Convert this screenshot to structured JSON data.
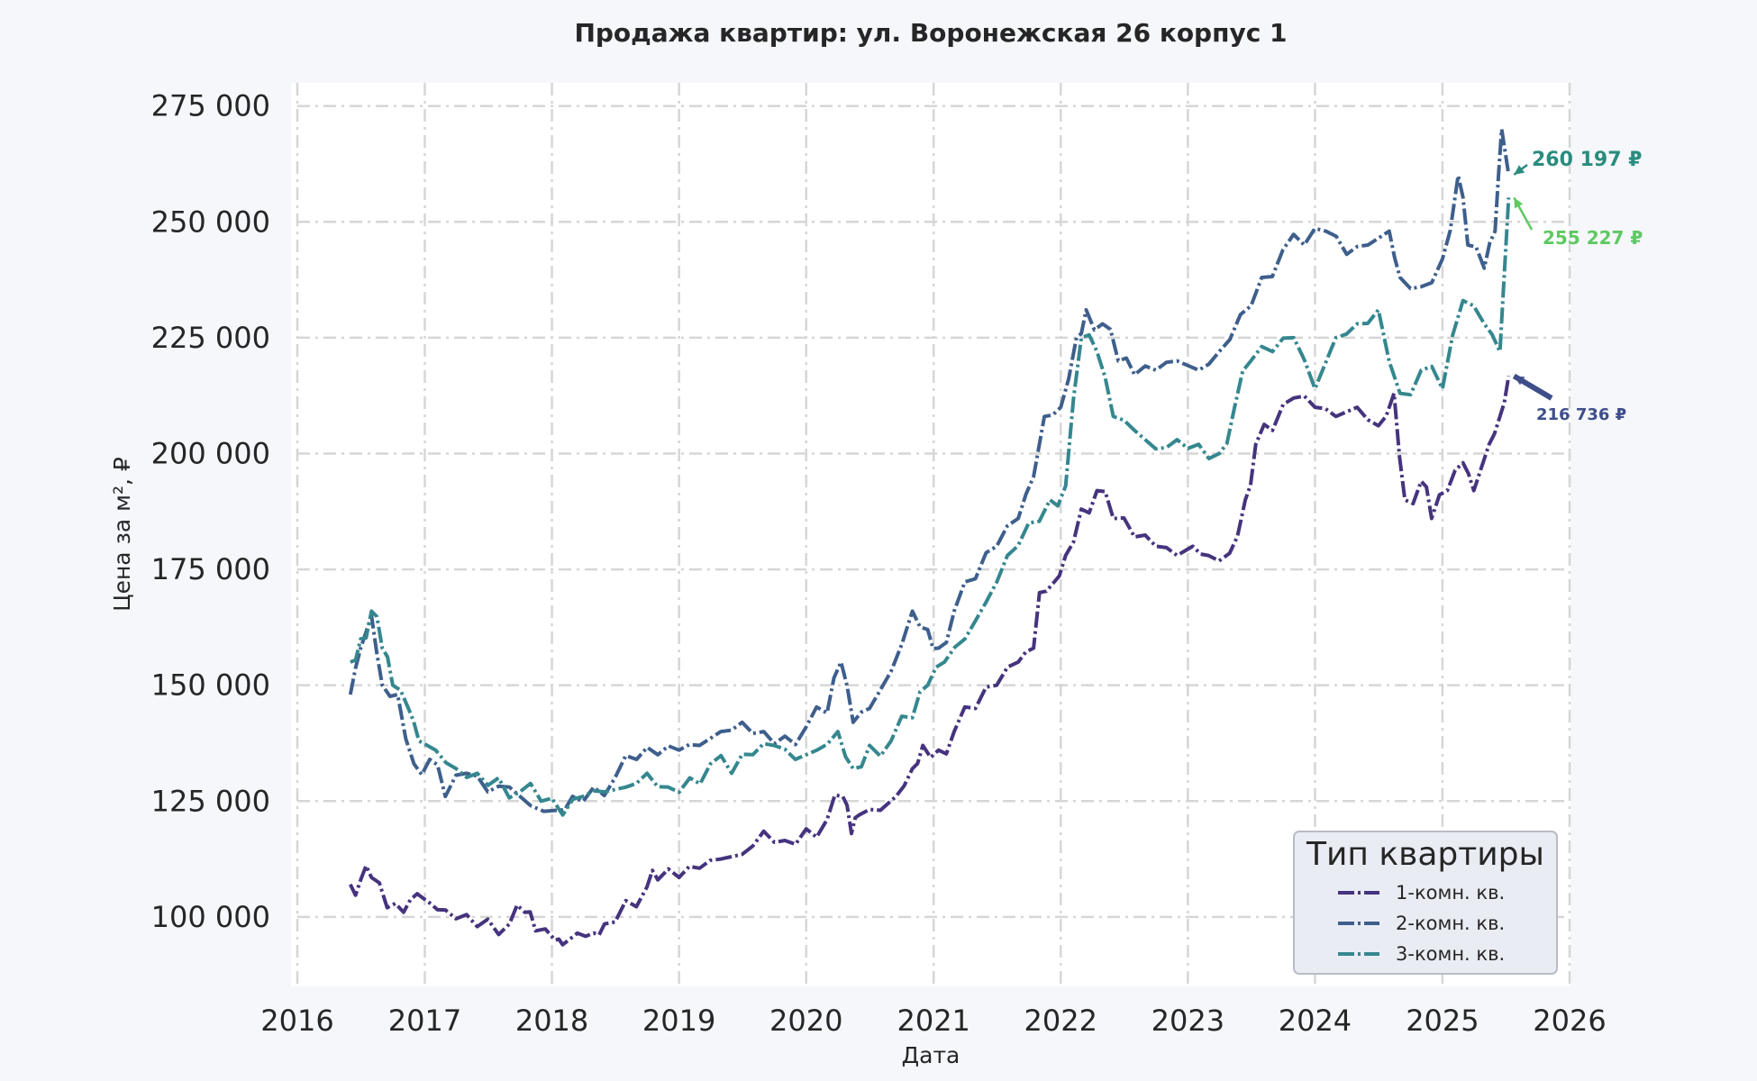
{
  "chart_data": {
    "type": "line",
    "title": "Продажа квартир: ул. Воронежская 26 корпус 1",
    "xlabel": "Дата",
    "ylabel": "Цена за м², ₽",
    "xlim": [
      "2016-01-01",
      "2026-01-01"
    ],
    "ylim": [
      85000,
      280000
    ],
    "x_ticks": [
      "2016",
      "2017",
      "2018",
      "2019",
      "2020",
      "2021",
      "2022",
      "2023",
      "2024",
      "2025",
      "2026"
    ],
    "y_ticks": [
      "100 000",
      "125 000",
      "150 000",
      "175 000",
      "200 000",
      "225 000",
      "250 000",
      "275 000"
    ],
    "y_tick_values": [
      100000,
      125000,
      150000,
      175000,
      200000,
      225000,
      250000,
      275000
    ],
    "grid": true,
    "legend": {
      "title": "Тип квартиры",
      "position": "lower-right"
    },
    "series": [
      {
        "name": "1-комн. кв.",
        "color": "#46337e",
        "points": [
          [
            "2016-06-01",
            107000
          ],
          [
            "2016-07-01",
            108000
          ],
          [
            "2016-08-01",
            108500
          ],
          [
            "2016-09-15",
            102000
          ],
          [
            "2016-11-01",
            101000
          ],
          [
            "2016-12-10",
            105000
          ],
          [
            "2017-01-15",
            103000
          ],
          [
            "2017-03-01",
            101500
          ],
          [
            "2017-05-01",
            100500
          ],
          [
            "2017-07-01",
            99500
          ],
          [
            "2017-09-01",
            98500
          ],
          [
            "2017-10-15",
            101000
          ],
          [
            "2017-11-15",
            97000
          ],
          [
            "2018-01-10",
            95000
          ],
          [
            "2018-02-01",
            94000
          ],
          [
            "2018-03-15",
            96500
          ],
          [
            "2018-05-01",
            96500
          ],
          [
            "2018-06-01",
            98500
          ],
          [
            "2018-08-01",
            103500
          ],
          [
            "2018-10-01",
            106500
          ],
          [
            "2018-11-01",
            108000
          ],
          [
            "2019-01-01",
            108500
          ],
          [
            "2019-03-01",
            110500
          ],
          [
            "2019-05-01",
            112500
          ],
          [
            "2019-07-01",
            113500
          ],
          [
            "2019-09-01",
            118500
          ],
          [
            "2019-11-01",
            116500
          ],
          [
            "2020-01-01",
            119000
          ],
          [
            "2020-03-01",
            121000
          ],
          [
            "2020-04-15",
            126000
          ],
          [
            "2020-05-10",
            118000
          ],
          [
            "2020-06-01",
            122000
          ],
          [
            "2020-08-01",
            123000
          ],
          [
            "2020-09-15",
            126000
          ],
          [
            "2020-11-01",
            132000
          ],
          [
            "2020-12-01",
            137000
          ],
          [
            "2021-01-15",
            136000
          ],
          [
            "2021-03-01",
            140000
          ],
          [
            "2021-05-01",
            145000
          ],
          [
            "2021-07-01",
            150000
          ],
          [
            "2021-09-01",
            155000
          ],
          [
            "2021-10-15",
            158000
          ],
          [
            "2021-11-01",
            170000
          ],
          [
            "2021-12-10",
            172000
          ],
          [
            "2022-01-15",
            178000
          ],
          [
            "2022-03-01",
            188000
          ],
          [
            "2022-04-15",
            192000
          ],
          [
            "2022-06-01",
            186000
          ],
          [
            "2022-08-01",
            182000
          ],
          [
            "2022-10-01",
            180000
          ],
          [
            "2022-12-01",
            178000
          ],
          [
            "2023-01-15",
            180000
          ],
          [
            "2023-03-01",
            178000
          ],
          [
            "2023-05-01",
            178500
          ],
          [
            "2023-06-15",
            190000
          ],
          [
            "2023-07-15",
            202000
          ],
          [
            "2023-09-01",
            205000
          ],
          [
            "2023-11-01",
            212000
          ],
          [
            "2024-01-01",
            210000
          ],
          [
            "2024-03-01",
            208000
          ],
          [
            "2024-05-01",
            210000
          ],
          [
            "2024-07-01",
            206000
          ],
          [
            "2024-08-15",
            213000
          ],
          [
            "2024-09-15",
            190000
          ],
          [
            "2024-11-01",
            194000
          ],
          [
            "2024-12-01",
            186000
          ],
          [
            "2025-01-15",
            192000
          ],
          [
            "2025-03-01",
            198000
          ],
          [
            "2025-04-01",
            192000
          ],
          [
            "2025-05-15",
            202000
          ],
          [
            "2025-06-15",
            208000
          ],
          [
            "2025-07-10",
            216736
          ]
        ]
      },
      {
        "name": "2-комн. кв.",
        "color": "#3e5f8c",
        "points": [
          [
            "2016-06-01",
            148000
          ],
          [
            "2016-07-01",
            158000
          ],
          [
            "2016-08-01",
            165000
          ],
          [
            "2016-09-01",
            150000
          ],
          [
            "2016-10-15",
            148000
          ],
          [
            "2016-12-01",
            133000
          ],
          [
            "2017-01-15",
            134000
          ],
          [
            "2017-03-01",
            126000
          ],
          [
            "2017-05-01",
            131000
          ],
          [
            "2017-07-01",
            127000
          ],
          [
            "2017-09-01",
            128000
          ],
          [
            "2017-11-01",
            124000
          ],
          [
            "2018-01-15",
            123000
          ],
          [
            "2018-03-01",
            126000
          ],
          [
            "2018-05-01",
            128000
          ],
          [
            "2018-07-01",
            130000
          ],
          [
            "2018-09-01",
            134000
          ],
          [
            "2018-11-01",
            135000
          ],
          [
            "2019-01-01",
            136000
          ],
          [
            "2019-03-01",
            137000
          ],
          [
            "2019-05-01",
            140000
          ],
          [
            "2019-07-01",
            142000
          ],
          [
            "2019-09-01",
            140000
          ],
          [
            "2019-11-01",
            139000
          ],
          [
            "2020-01-01",
            141000
          ],
          [
            "2020-03-01",
            144000
          ],
          [
            "2020-04-10",
            155000
          ],
          [
            "2020-05-15",
            142000
          ],
          [
            "2020-07-01",
            145000
          ],
          [
            "2020-09-01",
            153000
          ],
          [
            "2020-11-01",
            166000
          ],
          [
            "2020-12-15",
            162000
          ],
          [
            "2021-01-15",
            158000
          ],
          [
            "2021-03-01",
            166000
          ],
          [
            "2021-05-01",
            173000
          ],
          [
            "2021-07-01",
            180000
          ],
          [
            "2021-09-01",
            186000
          ],
          [
            "2021-10-15",
            195000
          ],
          [
            "2021-11-15",
            208000
          ],
          [
            "2022-01-01",
            210000
          ],
          [
            "2022-02-15",
            225000
          ],
          [
            "2022-03-15",
            231000
          ],
          [
            "2022-05-01",
            228000
          ],
          [
            "2022-06-15",
            220000
          ],
          [
            "2022-08-01",
            217000
          ],
          [
            "2022-10-01",
            218000
          ],
          [
            "2022-12-01",
            220000
          ],
          [
            "2023-02-01",
            218000
          ],
          [
            "2023-04-01",
            222000
          ],
          [
            "2023-06-01",
            230000
          ],
          [
            "2023-08-01",
            238000
          ],
          [
            "2023-10-01",
            244000
          ],
          [
            "2023-12-01",
            245000
          ],
          [
            "2024-02-01",
            248000
          ],
          [
            "2024-04-01",
            243000
          ],
          [
            "2024-06-01",
            245000
          ],
          [
            "2024-08-01",
            248000
          ],
          [
            "2024-09-01",
            238000
          ],
          [
            "2024-11-01",
            236000
          ],
          [
            "2025-01-01",
            242000
          ],
          [
            "2025-02-15",
            260000
          ],
          [
            "2025-03-15",
            245000
          ],
          [
            "2025-05-01",
            240000
          ],
          [
            "2025-06-01",
            248000
          ],
          [
            "2025-06-20",
            270000
          ],
          [
            "2025-07-10",
            260197
          ]
        ]
      },
      {
        "name": "3-комн. кв.",
        "color": "#35878f",
        "points": [
          [
            "2016-06-01",
            155000
          ],
          [
            "2016-07-01",
            160000
          ],
          [
            "2016-08-01",
            166000
          ],
          [
            "2016-09-01",
            158000
          ],
          [
            "2016-10-01",
            150000
          ],
          [
            "2016-11-15",
            145000
          ],
          [
            "2016-12-15",
            138000
          ],
          [
            "2017-02-01",
            136000
          ],
          [
            "2017-04-01",
            132000
          ],
          [
            "2017-06-01",
            131000
          ],
          [
            "2017-08-01",
            130000
          ],
          [
            "2017-10-01",
            127000
          ],
          [
            "2017-12-01",
            125000
          ],
          [
            "2018-02-01",
            122000
          ],
          [
            "2018-04-01",
            126000
          ],
          [
            "2018-06-01",
            127000
          ],
          [
            "2018-08-01",
            128000
          ],
          [
            "2018-10-01",
            131000
          ],
          [
            "2018-12-01",
            128000
          ],
          [
            "2019-02-01",
            130000
          ],
          [
            "2019-04-01",
            133000
          ],
          [
            "2019-06-01",
            131000
          ],
          [
            "2019-08-01",
            135000
          ],
          [
            "2019-10-01",
            137000
          ],
          [
            "2019-12-01",
            134000
          ],
          [
            "2020-02-01",
            136000
          ],
          [
            "2020-04-01",
            140000
          ],
          [
            "2020-05-15",
            132000
          ],
          [
            "2020-07-01",
            137000
          ],
          [
            "2020-09-01",
            138000
          ],
          [
            "2020-11-01",
            143000
          ],
          [
            "2020-12-15",
            150000
          ],
          [
            "2021-02-01",
            155000
          ],
          [
            "2021-04-01",
            160000
          ],
          [
            "2021-06-01",
            168000
          ],
          [
            "2021-08-01",
            178000
          ],
          [
            "2021-10-01",
            185000
          ],
          [
            "2021-12-01",
            190000
          ],
          [
            "2022-01-15",
            193000
          ],
          [
            "2022-03-01",
            225000
          ],
          [
            "2022-04-15",
            222000
          ],
          [
            "2022-06-01",
            208000
          ],
          [
            "2022-08-01",
            205000
          ],
          [
            "2022-10-01",
            201000
          ],
          [
            "2022-12-01",
            203000
          ],
          [
            "2023-02-01",
            202000
          ],
          [
            "2023-04-01",
            200000
          ],
          [
            "2023-05-15",
            210000
          ],
          [
            "2023-07-01",
            220000
          ],
          [
            "2023-09-01",
            222000
          ],
          [
            "2023-11-01",
            225000
          ],
          [
            "2024-01-01",
            214000
          ],
          [
            "2024-03-01",
            225000
          ],
          [
            "2024-05-01",
            228000
          ],
          [
            "2024-07-01",
            231000
          ],
          [
            "2024-09-01",
            213000
          ],
          [
            "2024-11-01",
            218000
          ],
          [
            "2025-01-01",
            214000
          ],
          [
            "2025-03-01",
            233000
          ],
          [
            "2025-05-01",
            228000
          ],
          [
            "2025-06-15",
            222000
          ],
          [
            "2025-07-10",
            255227
          ]
        ]
      }
    ],
    "annotations": [
      {
        "text": "260 197 ₽",
        "series": 1,
        "color": "#2a8c7f"
      },
      {
        "text": "255 227 ₽",
        "series": 2,
        "color": "#5ec962"
      },
      {
        "text": "216 736 ₽",
        "series": 0,
        "color": "#3e4e8a"
      }
    ]
  }
}
